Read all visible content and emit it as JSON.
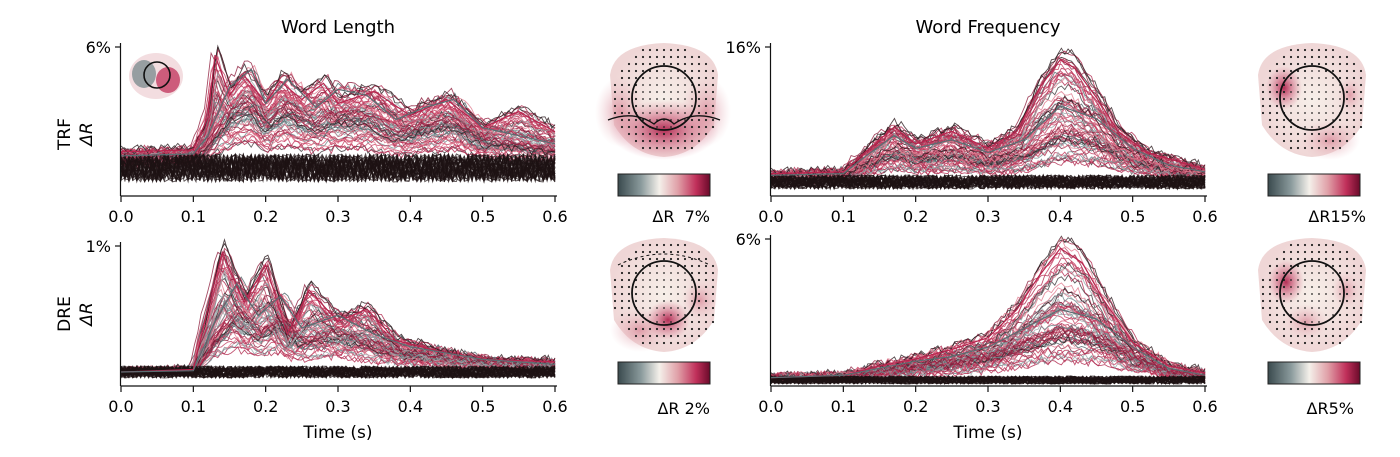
{
  "colormap": [
    "#3a4a4e",
    "#8a9a9c",
    "#f4f0ea",
    "#e0a0a8",
    "#c0305a",
    "#6a0a2a"
  ],
  "trace_colors": [
    "#2a1a1e",
    "#3c3a3c",
    "#4d6266",
    "#6e8a8c",
    "#9aa8aa",
    "#c23a5e",
    "#d04c6e",
    "#b0284e",
    "#8e1f3f",
    "#e07a8e"
  ],
  "chart_data": [
    {
      "type": "line",
      "title": "Word Length",
      "row_label": "TRF",
      "ylabel": "ΔR",
      "xlabel": "",
      "x_ticks": [
        "0.0",
        "0.1",
        "0.2",
        "0.3",
        "0.4",
        "0.5",
        "0.6"
      ],
      "xlim": [
        0.0,
        0.6
      ],
      "y_max_label": "6%",
      "ylim": [
        0,
        6
      ],
      "series": [
        {
          "x": [
            0.0,
            0.1,
            0.12,
            0.13,
            0.15,
            0.17,
            0.2,
            0.22,
            0.25,
            0.28,
            0.3,
            0.35,
            0.4,
            0.45,
            0.5,
            0.55,
            0.6
          ],
          "y": [
            0.8,
            0.9,
            2.5,
            5.6,
            3.6,
            4.6,
            3.2,
            4.3,
            3.4,
            4.2,
            3.2,
            3.8,
            2.6,
            3.4,
            2.0,
            2.8,
            1.8
          ]
        },
        {
          "x": [
            0.0,
            0.1,
            0.12,
            0.15,
            0.18,
            0.2,
            0.23,
            0.27,
            0.3,
            0.34,
            0.38,
            0.42,
            0.46,
            0.5,
            0.55,
            0.6
          ],
          "y": [
            0.6,
            0.7,
            1.6,
            4.0,
            4.9,
            3.2,
            4.4,
            3.0,
            3.9,
            3.6,
            2.4,
            3.0,
            3.4,
            2.0,
            1.6,
            1.2
          ]
        }
      ],
      "topomap_scale": "ΔR  7%"
    },
    {
      "type": "line",
      "title": "Word Frequency",
      "row_label": "TRF",
      "ylabel": "",
      "xlabel": "",
      "x_ticks": [
        "0.0",
        "0.1",
        "0.2",
        "0.3",
        "0.4",
        "0.5",
        "0.6"
      ],
      "xlim": [
        0.0,
        0.6
      ],
      "y_max_label": "16%",
      "ylim": [
        0,
        16
      ],
      "series": [
        {
          "x": [
            0.0,
            0.1,
            0.13,
            0.17,
            0.2,
            0.25,
            0.3,
            0.34,
            0.37,
            0.4,
            0.42,
            0.45,
            0.48,
            0.52,
            0.56,
            0.6
          ],
          "y": [
            1.0,
            1.2,
            3.5,
            6.5,
            4.5,
            6.0,
            4.0,
            6.0,
            11.0,
            14.5,
            13.5,
            10.0,
            6.0,
            3.5,
            2.5,
            1.5
          ]
        },
        {
          "x": [
            0.0,
            0.1,
            0.13,
            0.17,
            0.2,
            0.25,
            0.3,
            0.35,
            0.4,
            0.45,
            0.5,
            0.55,
            0.6
          ],
          "y": [
            0.8,
            1.0,
            3.0,
            5.5,
            4.0,
            5.0,
            3.5,
            5.0,
            9.0,
            7.5,
            4.0,
            2.0,
            1.2
          ]
        }
      ],
      "topomap_scale": "ΔR15%"
    },
    {
      "type": "line",
      "title": "",
      "row_label": "DRE",
      "ylabel": "ΔR",
      "xlabel": "Time (s)",
      "x_ticks": [
        "0.0",
        "0.1",
        "0.2",
        "0.3",
        "0.4",
        "0.5",
        "0.6"
      ],
      "xlim": [
        0.0,
        0.6
      ],
      "y_max_label": "1%",
      "ylim": [
        0,
        1
      ],
      "series": [
        {
          "x": [
            0.0,
            0.1,
            0.12,
            0.14,
            0.17,
            0.2,
            0.23,
            0.26,
            0.3,
            0.34,
            0.38,
            0.45,
            0.5,
            0.6
          ],
          "y": [
            0.0,
            0.02,
            0.5,
            0.95,
            0.55,
            0.85,
            0.3,
            0.65,
            0.4,
            0.5,
            0.25,
            0.15,
            0.1,
            0.08
          ]
        },
        {
          "x": [
            0.0,
            0.1,
            0.13,
            0.16,
            0.19,
            0.22,
            0.25,
            0.3,
            0.35,
            0.4,
            0.5,
            0.6
          ],
          "y": [
            0.0,
            0.01,
            0.4,
            0.7,
            0.45,
            0.6,
            0.35,
            0.45,
            0.3,
            0.2,
            0.1,
            0.06
          ]
        }
      ],
      "topomap_scale": "ΔR 2%"
    },
    {
      "type": "line",
      "title": "",
      "row_label": "",
      "ylabel": "",
      "xlabel": "Time (s)",
      "x_ticks": [
        "0.0",
        "0.1",
        "0.2",
        "0.3",
        "0.4",
        "0.5",
        "0.6"
      ],
      "xlim": [
        0.0,
        0.6
      ],
      "y_max_label": "6%",
      "ylim": [
        0,
        6
      ],
      "series": [
        {
          "x": [
            0.0,
            0.1,
            0.15,
            0.2,
            0.25,
            0.3,
            0.34,
            0.37,
            0.4,
            0.43,
            0.46,
            0.5,
            0.55,
            0.6
          ],
          "y": [
            0.1,
            0.2,
            0.6,
            0.9,
            1.3,
            1.8,
            3.0,
            4.4,
            5.6,
            5.0,
            3.4,
            1.6,
            0.6,
            0.3
          ]
        },
        {
          "x": [
            0.0,
            0.1,
            0.15,
            0.2,
            0.25,
            0.3,
            0.35,
            0.4,
            0.45,
            0.5,
            0.55,
            0.6
          ],
          "y": [
            0.1,
            0.2,
            0.5,
            0.8,
            1.0,
            1.4,
            2.2,
            3.0,
            2.6,
            1.4,
            0.5,
            0.2
          ]
        }
      ],
      "topomap_scale": "ΔR5%"
    }
  ]
}
